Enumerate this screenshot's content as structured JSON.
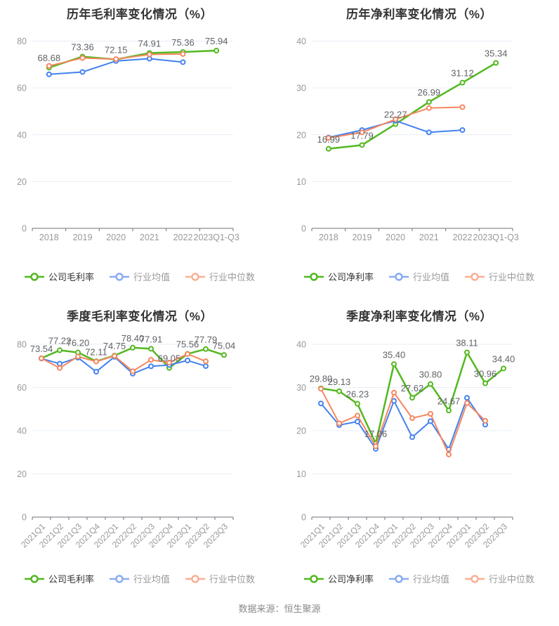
{
  "footer": "数据来源：恒生聚源",
  "style": {
    "grid_color": "#e7edf6",
    "axis_color": "#6e7079",
    "tick_label_color": "#999999",
    "data_label_color": "#606266",
    "title_color": "#333333",
    "company_legend_text_color": "#333333",
    "industry_legend_text_color": "#999999"
  },
  "chart_data": [
    {
      "type": "line",
      "title": "历年毛利率变化情况（%）",
      "ylim": [
        0,
        80
      ],
      "y_ticks": [
        0,
        20,
        40,
        60,
        80
      ],
      "x_label_rotate": false,
      "grid": true,
      "legend_position": "bottom",
      "categories": [
        "2018",
        "2019",
        "2020",
        "2021",
        "2022",
        "2023Q1-Q3"
      ],
      "series": [
        {
          "name": "公司毛利率",
          "color": "#52b81f",
          "legend_color": "#52b81f",
          "line_width": 2.5,
          "values": [
            68.68,
            73.36,
            72.15,
            74.91,
            75.36,
            75.94
          ],
          "labels": [
            "68.68",
            "73.36",
            "72.15",
            "74.91",
            "75.36",
            "75.94"
          ]
        },
        {
          "name": "行业均值",
          "color": "#4381f0",
          "legend_color": "#8aabf3",
          "line_width": 2,
          "values": [
            65.8,
            66.8,
            71.5,
            72.5,
            71.0,
            null
          ]
        },
        {
          "name": "行业中位数",
          "color": "#f5875f",
          "legend_color": "#f8b095",
          "line_width": 2,
          "values": [
            69.4,
            72.8,
            72.3,
            74.3,
            74.5,
            null
          ]
        }
      ]
    },
    {
      "type": "line",
      "title": "历年净利率变化情况（%）",
      "ylim": [
        0,
        40
      ],
      "y_ticks": [
        0,
        10,
        20,
        30,
        40
      ],
      "x_label_rotate": false,
      "grid": true,
      "legend_position": "bottom",
      "categories": [
        "2018",
        "2019",
        "2020",
        "2021",
        "2022",
        "2023Q1-Q3"
      ],
      "series": [
        {
          "name": "公司净利率",
          "color": "#52b81f",
          "legend_color": "#52b81f",
          "line_width": 2.5,
          "values": [
            16.99,
            17.79,
            22.27,
            26.99,
            31.12,
            35.34
          ],
          "labels": [
            "16.99",
            "17.79",
            "22.27",
            "26.99",
            "31.12",
            "35.34"
          ]
        },
        {
          "name": "行业均值",
          "color": "#4381f0",
          "legend_color": "#8aabf3",
          "line_width": 2,
          "values": [
            19.4,
            21.0,
            23.0,
            20.5,
            21.0,
            null
          ]
        },
        {
          "name": "行业中位数",
          "color": "#f5875f",
          "legend_color": "#f8b095",
          "line_width": 2,
          "values": [
            19.3,
            20.5,
            23.3,
            25.7,
            25.9,
            null
          ]
        }
      ]
    },
    {
      "type": "line",
      "title": "季度毛利率变化情况（%）",
      "ylim": [
        0,
        80
      ],
      "y_ticks": [
        0,
        20,
        40,
        60,
        80
      ],
      "x_label_rotate": true,
      "grid": true,
      "legend_position": "bottom",
      "categories": [
        "2021Q1",
        "2021Q2",
        "2021Q3",
        "2021Q4",
        "2022Q1",
        "2022Q2",
        "2022Q3",
        "2022Q4",
        "2023Q1",
        "2023Q2",
        "2023Q3"
      ],
      "series": [
        {
          "name": "公司毛利率",
          "color": "#52b81f",
          "legend_color": "#52b81f",
          "line_width": 2.5,
          "values": [
            73.54,
            77.22,
            76.2,
            72.11,
            74.75,
            78.4,
            77.91,
            69.05,
            75.56,
            77.79,
            75.04
          ],
          "labels": [
            "73.54",
            "77.22",
            "76.20",
            "72.11",
            "74.75",
            "78.40",
            "77.91",
            "69.05",
            "75.56",
            "77.79",
            "75.04"
          ]
        },
        {
          "name": "行业均值",
          "color": "#4381f0",
          "legend_color": "#8aabf3",
          "line_width": 2,
          "values": [
            73.4,
            71.0,
            73.8,
            67.3,
            74.2,
            66.4,
            69.8,
            70.4,
            72.5,
            69.9,
            null
          ]
        },
        {
          "name": "行业中位数",
          "color": "#f5875f",
          "legend_color": "#f8b095",
          "line_width": 2,
          "values": [
            73.5,
            69.0,
            74.3,
            72.0,
            74.6,
            67.5,
            72.8,
            71.5,
            75.5,
            72.1,
            null
          ]
        }
      ]
    },
    {
      "type": "line",
      "title": "季度净利率变化情况（%）",
      "ylim": [
        0,
        40
      ],
      "y_ticks": [
        0,
        10,
        20,
        30,
        40
      ],
      "x_label_rotate": true,
      "grid": true,
      "legend_position": "bottom",
      "categories": [
        "2021Q1",
        "2021Q2",
        "2021Q3",
        "2021Q4",
        "2022Q1",
        "2022Q2",
        "2022Q3",
        "2022Q4",
        "2023Q1",
        "2023Q2",
        "2023Q3"
      ],
      "series": [
        {
          "name": "公司净利率",
          "color": "#52b81f",
          "legend_color": "#52b81f",
          "line_width": 2.5,
          "values": [
            29.8,
            29.13,
            26.23,
            17.06,
            35.4,
            27.62,
            30.8,
            24.67,
            38.11,
            30.96,
            34.4
          ],
          "labels": [
            "29.80",
            "29.13",
            "26.23",
            "17.06",
            "35.40",
            "27.62",
            "30.80",
            "24.67",
            "38.11",
            "30.96",
            "34.40"
          ]
        },
        {
          "name": "行业均值",
          "color": "#4381f0",
          "legend_color": "#8aabf3",
          "line_width": 2,
          "values": [
            26.3,
            21.3,
            22.1,
            15.8,
            26.9,
            18.5,
            22.2,
            15.7,
            27.6,
            21.4,
            null
          ]
        },
        {
          "name": "行业中位数",
          "color": "#f5875f",
          "legend_color": "#f8b095",
          "line_width": 2,
          "values": [
            29.7,
            21.7,
            23.5,
            16.4,
            28.8,
            22.9,
            23.9,
            14.5,
            26.4,
            22.3,
            null
          ]
        }
      ]
    }
  ]
}
